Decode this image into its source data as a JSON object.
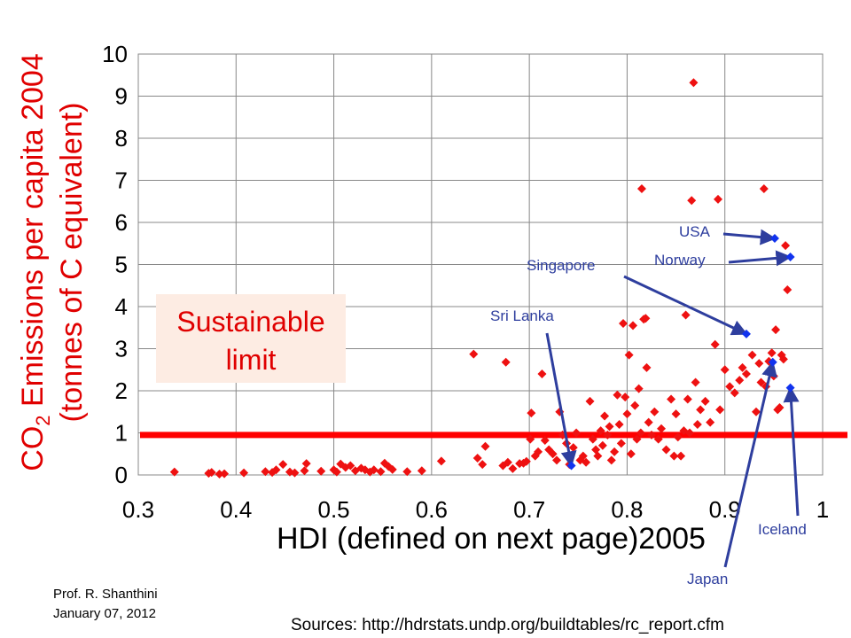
{
  "chart_data": {
    "type": "scatter",
    "xlabel": "HDI (defined on next page)2005",
    "ylabel_line1_prefix": "CO",
    "ylabel_line1_sub": "2",
    "ylabel_line1_suffix": " Emissions per capita 2004",
    "ylabel_line2": "(tonnes of C equivalent)",
    "xlim": [
      0.3,
      1.0
    ],
    "ylim": [
      0,
      10
    ],
    "xticks": [
      "0.3",
      "0.4",
      "0.5",
      "0.6",
      "0.7",
      "0.8",
      "0.9",
      "1"
    ],
    "yticks": [
      "0",
      "1",
      "2",
      "3",
      "4",
      "5",
      "6",
      "7",
      "8",
      "9",
      "10"
    ],
    "grid": true,
    "threshold": {
      "y": 0.95,
      "color": "#ff0000"
    },
    "limit_label_line1": "Sustainable",
    "limit_label_line2": "limit",
    "colors": {
      "points": "#ee1111",
      "highlight": "#1133ee",
      "annotation": "#2e3e9e"
    },
    "points": [
      [
        0.337,
        0.07
      ],
      [
        0.372,
        0.04
      ],
      [
        0.375,
        0.06
      ],
      [
        0.383,
        0.02
      ],
      [
        0.388,
        0.03
      ],
      [
        0.408,
        0.05
      ],
      [
        0.43,
        0.08
      ],
      [
        0.437,
        0.06
      ],
      [
        0.441,
        0.12
      ],
      [
        0.448,
        0.25
      ],
      [
        0.455,
        0.07
      ],
      [
        0.46,
        0.05
      ],
      [
        0.47,
        0.1
      ],
      [
        0.472,
        0.27
      ],
      [
        0.487,
        0.09
      ],
      [
        0.5,
        0.12
      ],
      [
        0.503,
        0.07
      ],
      [
        0.507,
        0.26
      ],
      [
        0.512,
        0.18
      ],
      [
        0.517,
        0.22
      ],
      [
        0.522,
        0.1
      ],
      [
        0.528,
        0.16
      ],
      [
        0.532,
        0.12
      ],
      [
        0.537,
        0.07
      ],
      [
        0.541,
        0.12
      ],
      [
        0.548,
        0.08
      ],
      [
        0.552,
        0.28
      ],
      [
        0.556,
        0.2
      ],
      [
        0.56,
        0.13
      ],
      [
        0.575,
        0.08
      ],
      [
        0.59,
        0.1
      ],
      [
        0.61,
        0.33
      ],
      [
        0.643,
        2.87
      ],
      [
        0.647,
        0.4
      ],
      [
        0.652,
        0.25
      ],
      [
        0.655,
        0.68
      ],
      [
        0.673,
        0.22
      ],
      [
        0.676,
        2.68
      ],
      [
        0.678,
        0.3
      ],
      [
        0.683,
        0.15
      ],
      [
        0.69,
        0.27
      ],
      [
        0.694,
        0.28
      ],
      [
        0.697,
        0.32
      ],
      [
        0.701,
        0.85
      ],
      [
        0.702,
        1.47
      ],
      [
        0.706,
        0.45
      ],
      [
        0.709,
        0.55
      ],
      [
        0.713,
        2.4
      ],
      [
        0.716,
        0.82
      ],
      [
        0.72,
        0.6
      ],
      [
        0.724,
        0.5
      ],
      [
        0.728,
        0.35
      ],
      [
        0.731,
        1.5
      ],
      [
        0.734,
        0.95
      ],
      [
        0.738,
        0.75
      ],
      [
        0.741,
        0.25
      ],
      [
        0.745,
        0.65
      ],
      [
        0.748,
        1.0
      ],
      [
        0.752,
        0.35
      ],
      [
        0.755,
        0.45
      ],
      [
        0.758,
        0.3
      ],
      [
        0.762,
        1.75
      ],
      [
        0.765,
        0.85
      ],
      [
        0.768,
        0.6
      ],
      [
        0.77,
        0.45
      ],
      [
        0.773,
        1.05
      ],
      [
        0.775,
        0.7
      ],
      [
        0.777,
        1.4
      ],
      [
        0.78,
        0.95
      ],
      [
        0.782,
        1.15
      ],
      [
        0.784,
        0.35
      ],
      [
        0.787,
        0.55
      ],
      [
        0.79,
        1.9
      ],
      [
        0.792,
        1.2
      ],
      [
        0.794,
        0.75
      ],
      [
        0.796,
        3.6
      ],
      [
        0.798,
        1.85
      ],
      [
        0.8,
        1.45
      ],
      [
        0.802,
        2.85
      ],
      [
        0.804,
        0.5
      ],
      [
        0.806,
        3.55
      ],
      [
        0.808,
        1.65
      ],
      [
        0.81,
        0.85
      ],
      [
        0.812,
        2.05
      ],
      [
        0.814,
        1.0
      ],
      [
        0.815,
        6.8
      ],
      [
        0.817,
        3.7
      ],
      [
        0.819,
        3.72
      ],
      [
        0.82,
        2.55
      ],
      [
        0.822,
        1.25
      ],
      [
        0.825,
        0.95
      ],
      [
        0.828,
        1.5
      ],
      [
        0.832,
        0.85
      ],
      [
        0.835,
        1.1
      ],
      [
        0.84,
        0.6
      ],
      [
        0.845,
        1.8
      ],
      [
        0.848,
        0.45
      ],
      [
        0.85,
        1.45
      ],
      [
        0.852,
        0.9
      ],
      [
        0.855,
        0.45
      ],
      [
        0.858,
        1.05
      ],
      [
        0.86,
        3.8
      ],
      [
        0.862,
        1.8
      ],
      [
        0.864,
        1.0
      ],
      [
        0.866,
        6.52
      ],
      [
        0.868,
        9.32
      ],
      [
        0.87,
        2.2
      ],
      [
        0.872,
        1.2
      ],
      [
        0.875,
        1.55
      ],
      [
        0.88,
        1.75
      ],
      [
        0.885,
        1.25
      ],
      [
        0.89,
        3.1
      ],
      [
        0.893,
        6.55
      ],
      [
        0.895,
        1.55
      ],
      [
        0.9,
        2.5
      ],
      [
        0.905,
        2.1
      ],
      [
        0.91,
        1.95
      ],
      [
        0.915,
        2.25
      ],
      [
        0.918,
        2.55
      ],
      [
        0.922,
        2.4
      ],
      [
        0.928,
        2.85
      ],
      [
        0.932,
        1.5
      ],
      [
        0.935,
        2.65
      ],
      [
        0.937,
        2.2
      ],
      [
        0.94,
        6.8
      ],
      [
        0.942,
        2.1
      ],
      [
        0.945,
        2.7
      ],
      [
        0.948,
        2.9
      ],
      [
        0.95,
        2.35
      ],
      [
        0.952,
        3.45
      ],
      [
        0.954,
        1.55
      ],
      [
        0.956,
        1.6
      ],
      [
        0.958,
        2.85
      ],
      [
        0.96,
        2.75
      ],
      [
        0.962,
        5.45
      ],
      [
        0.964,
        4.4
      ]
    ],
    "highlights": [
      {
        "name": "Sri Lanka",
        "x": 0.743,
        "y": 0.22,
        "label": "Sri Lanka"
      },
      {
        "name": "Singapore",
        "x": 0.922,
        "y": 3.35,
        "label": "Singapore"
      },
      {
        "name": "USA",
        "x": 0.951,
        "y": 5.62,
        "label": "USA"
      },
      {
        "name": "Norway",
        "x": 0.967,
        "y": 5.18,
        "label": "Norway"
      },
      {
        "name": "Japan",
        "x": 0.949,
        "y": 2.68,
        "label": "Japan"
      },
      {
        "name": "Iceland",
        "x": 0.967,
        "y": 2.07,
        "label": "Iceland"
      }
    ]
  },
  "footer": {
    "author": "Prof. R. Shanthini",
    "date": "January 07, 2012",
    "sources": "Sources: http://hdrstats.undp.org/buildtables/rc_report.cfm"
  }
}
